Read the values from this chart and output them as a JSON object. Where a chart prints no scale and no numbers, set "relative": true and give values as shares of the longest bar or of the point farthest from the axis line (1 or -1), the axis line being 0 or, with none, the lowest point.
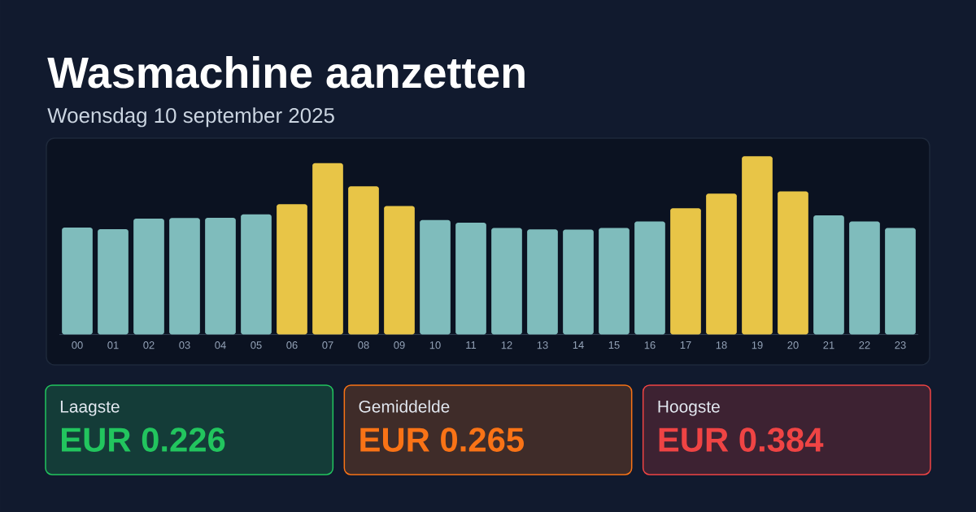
{
  "chart_data": [
    {
      "type": "bar",
      "title": "Wasmachine aanzetten",
      "subtitle": "Woensdag 10 september 2025",
      "categories": [
        "00",
        "01",
        "02",
        "03",
        "04",
        "05",
        "06",
        "07",
        "08",
        "09",
        "10",
        "11",
        "12",
        "13",
        "14",
        "15",
        "16",
        "17",
        "18",
        "19",
        "20",
        "21",
        "22",
        "23"
      ],
      "values": [
        0.6,
        0.591,
        0.65,
        0.653,
        0.655,
        0.674,
        0.731,
        0.961,
        0.831,
        0.72,
        0.642,
        0.627,
        0.597,
        0.59,
        0.588,
        0.598,
        0.634,
        0.708,
        0.79,
        1,
        0.803,
        0.668,
        0.634,
        0.597
      ],
      "colors": [
        "#7fbcbc",
        "#7fbcbc",
        "#7fbcbc",
        "#7fbcbc",
        "#7fbcbc",
        "#7fbcbc",
        "#e8c547",
        "#e8c547",
        "#e8c547",
        "#e8c547",
        "#7fbcbc",
        "#7fbcbc",
        "#7fbcbc",
        "#7fbcbc",
        "#7fbcbc",
        "#7fbcbc",
        "#7fbcbc",
        "#e8c547",
        "#e8c547",
        "#e8c547",
        "#e8c547",
        "#7fbcbc",
        "#7fbcbc",
        "#7fbcbc"
      ],
      "relative": true
    },
    {
      "type": "other",
      "categories": [
        "Laagste",
        "Gemiddelde",
        "Hoogste"
      ],
      "value_labels": [
        "EUR 0.226",
        "EUR 0.265",
        "EUR 0.384"
      ],
      "colors": [
        "#22c55e",
        "#f97316",
        "#ef4444"
      ]
    }
  ]
}
